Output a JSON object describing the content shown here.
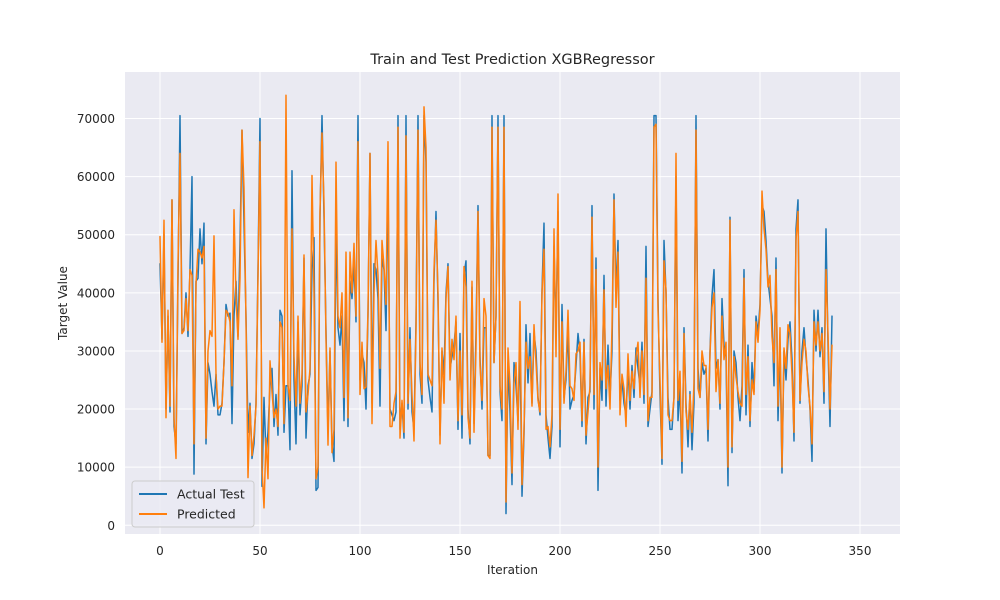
{
  "chart_data": {
    "type": "line",
    "title": "Train and Test Prediction XGBRegressor",
    "xlabel": "Iteration",
    "ylabel": "Target Value",
    "xlim": [
      -17.5,
      370
    ],
    "ylim": [
      -1500,
      78000
    ],
    "xticks": [
      0,
      50,
      100,
      150,
      200,
      250,
      300,
      350
    ],
    "yticks": [
      0,
      10000,
      20000,
      30000,
      40000,
      50000,
      60000,
      70000
    ],
    "grid": true,
    "legend_location": "lower left",
    "x": {
      "start": 0,
      "count": 355,
      "step": 1
    },
    "series": [
      {
        "name": "Actual Test",
        "color": "#1f77b4",
        "values": [
          45000,
          32000,
          50000,
          20000,
          36000,
          19500,
          56000,
          17000,
          14000,
          42000,
          70500,
          33000,
          34000,
          40000,
          32500,
          44000,
          60000,
          8800,
          42000,
          42500,
          51000,
          45000,
          52000,
          14000,
          28000,
          26000,
          23000,
          20500,
          26000,
          19000,
          19000,
          21000,
          28000,
          38000,
          36000,
          36500,
          17500,
          36000,
          42000,
          32500,
          48500,
          68000,
          52000,
          36000,
          16000,
          21000,
          11500,
          14000,
          21000,
          44000,
          70000,
          6700,
          22000,
          12000,
          16000,
          24000,
          27000,
          17000,
          22500,
          15500,
          37000,
          36000,
          16000,
          24000,
          24000,
          13000,
          61000,
          25000,
          14000,
          35000,
          19000,
          24000,
          46000,
          15000,
          24000,
          26000,
          44000,
          49500,
          6000,
          6500,
          53000,
          70500,
          53000,
          33500,
          16000,
          30000,
          14000,
          11000,
          52000,
          34000,
          31000,
          36000,
          18000,
          42000,
          17000,
          42000,
          39000,
          45000,
          35000,
          70500,
          25000,
          29500,
          28000,
          20000,
          36000,
          64000,
          21000,
          45000,
          44000,
          39000,
          20500,
          46000,
          44000,
          33500,
          58500,
          20000,
          19000,
          18000,
          19500,
          70500,
          16500,
          21000,
          15000,
          70500,
          20000,
          34000,
          19500,
          16500,
          35000,
          70500,
          26000,
          21000,
          70500,
          62500,
          25000,
          22000,
          19500,
          42000,
          54000,
          38500,
          15500,
          30000,
          26000,
          40000,
          45000,
          27000,
          29000,
          31000,
          35000,
          16500,
          33000,
          15000,
          43000,
          45500,
          20000,
          14000,
          41000,
          17500,
          33000,
          55000,
          29000,
          20000,
          34000,
          34000,
          12000,
          12000,
          70500,
          28000,
          36000,
          70500,
          23000,
          18000,
          70500,
          2000,
          28000,
          19500,
          7000,
          28000,
          24000,
          18000,
          31000,
          5000,
          15500,
          34500,
          24500,
          33000,
          21000,
          33000,
          30000,
          22000,
          19000,
          40500,
          52000,
          19000,
          15000,
          11500,
          17000,
          48000,
          33000,
          54000,
          13500,
          38000,
          22000,
          25000,
          34000,
          20000,
          21500,
          22500,
          27500,
          33000,
          29500,
          17000,
          32000,
          14000,
          22000,
          23000,
          55000,
          20000,
          46000,
          6000,
          27000,
          21500,
          43000,
          20500,
          31000,
          22000,
          30000,
          57000,
          40000,
          49000,
          21500,
          25000,
          21000,
          19000,
          27000,
          20000,
          27500,
          22000,
          30500,
          27000,
          24000,
          31500,
          21000,
          48000,
          17000,
          20000,
          23000,
          70500,
          70500,
          39000,
          22500,
          10500,
          49000,
          40000,
          22000,
          16500,
          16500,
          22000,
          60000,
          18000,
          24000,
          9000,
          34000,
          21000,
          13500,
          23000,
          13000,
          21000,
          70500,
          27000,
          22000,
          28000,
          26000,
          27000,
          14500,
          30000,
          39500,
          44000,
          27000,
          28500,
          20000,
          39000,
          31000,
          29000,
          6800,
          53000,
          12500,
          30000,
          28000,
          22000,
          18000,
          24000,
          44000,
          19000,
          31000,
          17000,
          28000,
          23000,
          36000,
          33000,
          38000,
          55000,
          54000,
          49000,
          42000,
          39000,
          36000,
          24000,
          46000,
          18000,
          31000,
          9000,
          30000,
          25000,
          32000,
          35000,
          28500,
          14500,
          51000,
          56000,
          21000,
          30000,
          34000,
          29000,
          25000,
          20000,
          11000,
          37000,
          30000,
          37000,
          29000,
          34000,
          21000,
          51000,
          31000,
          17000,
          36000
        ]
      },
      {
        "name": "Predicted",
        "color": "#ff7f0e",
        "values": [
          49700,
          31500,
          52500,
          18500,
          37000,
          20500,
          56000,
          18500,
          11500,
          45000,
          64000,
          33000,
          33500,
          39000,
          33500,
          44000,
          43000,
          14000,
          41500,
          47500,
          47000,
          46000,
          48000,
          15000,
          30000,
          33500,
          32500,
          49800,
          26000,
          20000,
          20500,
          20500,
          28000,
          37000,
          36500,
          35000,
          24000,
          54300,
          39000,
          32000,
          42500,
          68000,
          58000,
          35000,
          8200,
          20500,
          12000,
          15500,
          20500,
          43000,
          66000,
          10000,
          3000,
          15000,
          8000,
          28300,
          23000,
          18500,
          20000,
          17000,
          35000,
          34000,
          17500,
          74000,
          24000,
          21500,
          51000,
          29000,
          20500,
          36000,
          21000,
          26000,
          46500,
          19500,
          22500,
          27000,
          60200,
          40000,
          8000,
          10000,
          54000,
          67500,
          55500,
          32000,
          13800,
          30500,
          12500,
          16500,
          62500,
          36000,
          34000,
          40000,
          22000,
          47000,
          18500,
          47000,
          40000,
          48500,
          36000,
          66000,
          22500,
          31500,
          23500,
          23800,
          37000,
          64000,
          17500,
          40000,
          49000,
          43000,
          27000,
          49000,
          44500,
          38000,
          66000,
          17000,
          17000,
          21000,
          23000,
          68500,
          15000,
          21500,
          16000,
          67000,
          21000,
          32000,
          22500,
          14500,
          33500,
          68000,
          28000,
          22500,
          72000,
          65000,
          26000,
          25000,
          24000,
          44000,
          52500,
          40000,
          14000,
          30500,
          21000,
          39000,
          44500,
          25000,
          32000,
          28500,
          36000,
          18000,
          30000,
          19000,
          44500,
          41000,
          18500,
          15000,
          42000,
          16000,
          30500,
          54000,
          27500,
          21500,
          39000,
          36000,
          12000,
          11500,
          68500,
          28000,
          36000,
          68500,
          24000,
          20000,
          68500,
          4000,
          30500,
          24000,
          9000,
          24500,
          28000,
          16500,
          38500,
          7000,
          16500,
          31500,
          27000,
          29000,
          20500,
          34500,
          28000,
          21500,
          19500,
          40000,
          47500,
          16500,
          17000,
          13500,
          19000,
          51000,
          29000,
          57000,
          16500,
          35000,
          21000,
          26500,
          37000,
          24000,
          23500,
          21500,
          29500,
          30000,
          31500,
          18000,
          31500,
          15500,
          19500,
          24000,
          53000,
          22500,
          44000,
          10000,
          28000,
          25000,
          40500,
          23500,
          27500,
          20000,
          34000,
          56000,
          37500,
          47000,
          19000,
          26000,
          23500,
          17000,
          29500,
          21500,
          26500,
          23500,
          29000,
          31500,
          22000,
          30000,
          22500,
          42500,
          18000,
          22000,
          22000,
          68500,
          69000,
          37000,
          25000,
          11500,
          45500,
          40500,
          19000,
          18000,
          18000,
          22000,
          64000,
          21500,
          26500,
          11000,
          33000,
          19500,
          16500,
          22500,
          16000,
          24500,
          68000,
          23500,
          22000,
          30000,
          27500,
          27500,
          16500,
          29500,
          37500,
          40000,
          23000,
          28500,
          21000,
          36000,
          28500,
          31500,
          10000,
          52500,
          13500,
          29000,
          25500,
          23000,
          21000,
          20500,
          42500,
          22500,
          29000,
          18000,
          25000,
          22500,
          35000,
          31500,
          37000,
          57500,
          51000,
          47500,
          41000,
          43000,
          32500,
          28000,
          44000,
          20500,
          34000,
          10000,
          30500,
          27000,
          34500,
          33000,
          26000,
          16000,
          49000,
          54000,
          21500,
          28000,
          32000,
          30000,
          24000,
          20500,
          14000,
          35000,
          31000,
          35000,
          30000,
          33000,
          23000,
          44000,
          33000,
          20000,
          31000
        ]
      }
    ]
  }
}
